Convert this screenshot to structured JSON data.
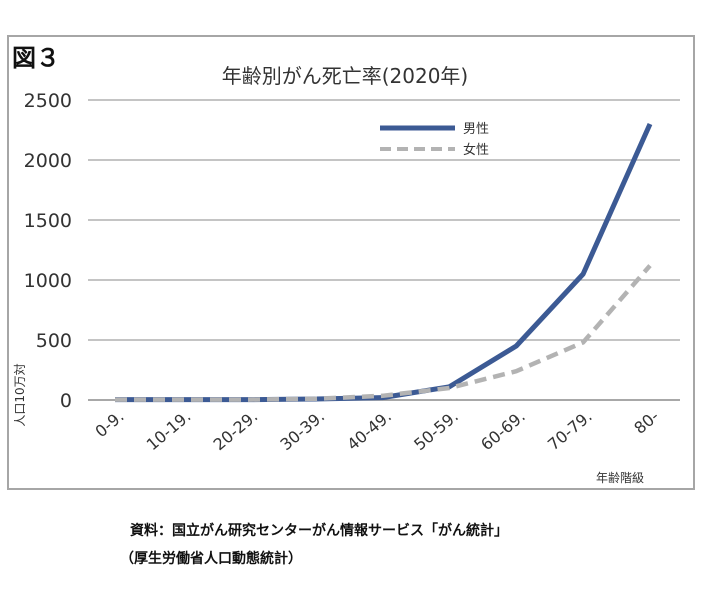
{
  "figure_label": "図３",
  "chart_data": {
    "type": "line",
    "title": "年齢別がん死亡率(2020年)",
    "ylabel": "人口10万対",
    "xlabel": "年齢階級",
    "categories": [
      "0-9.",
      "10-19.",
      "20-29.",
      "30-39.",
      "40-49.",
      "50-59.",
      "60-69.",
      "70-79.",
      "80-"
    ],
    "ylim": [
      0,
      2500
    ],
    "yticks": [
      0,
      500,
      1000,
      1500,
      2000,
      2500
    ],
    "grid": true,
    "legend_position": "top-right",
    "series": [
      {
        "name": "男性",
        "values": [
          3,
          3,
          3,
          8,
          20,
          110,
          450,
          1050,
          2300
        ],
        "color": "#3c5a94",
        "style": "solid"
      },
      {
        "name": "女性",
        "values": [
          3,
          3,
          3,
          10,
          35,
          100,
          240,
          480,
          1120
        ],
        "color": "#b3b3b3",
        "style": "dashed"
      }
    ]
  },
  "source": {
    "line1": "資料：国立がん研究センターがん情報サービス「がん統計」",
    "line2": "（厚生労働省人口動態統計）"
  }
}
